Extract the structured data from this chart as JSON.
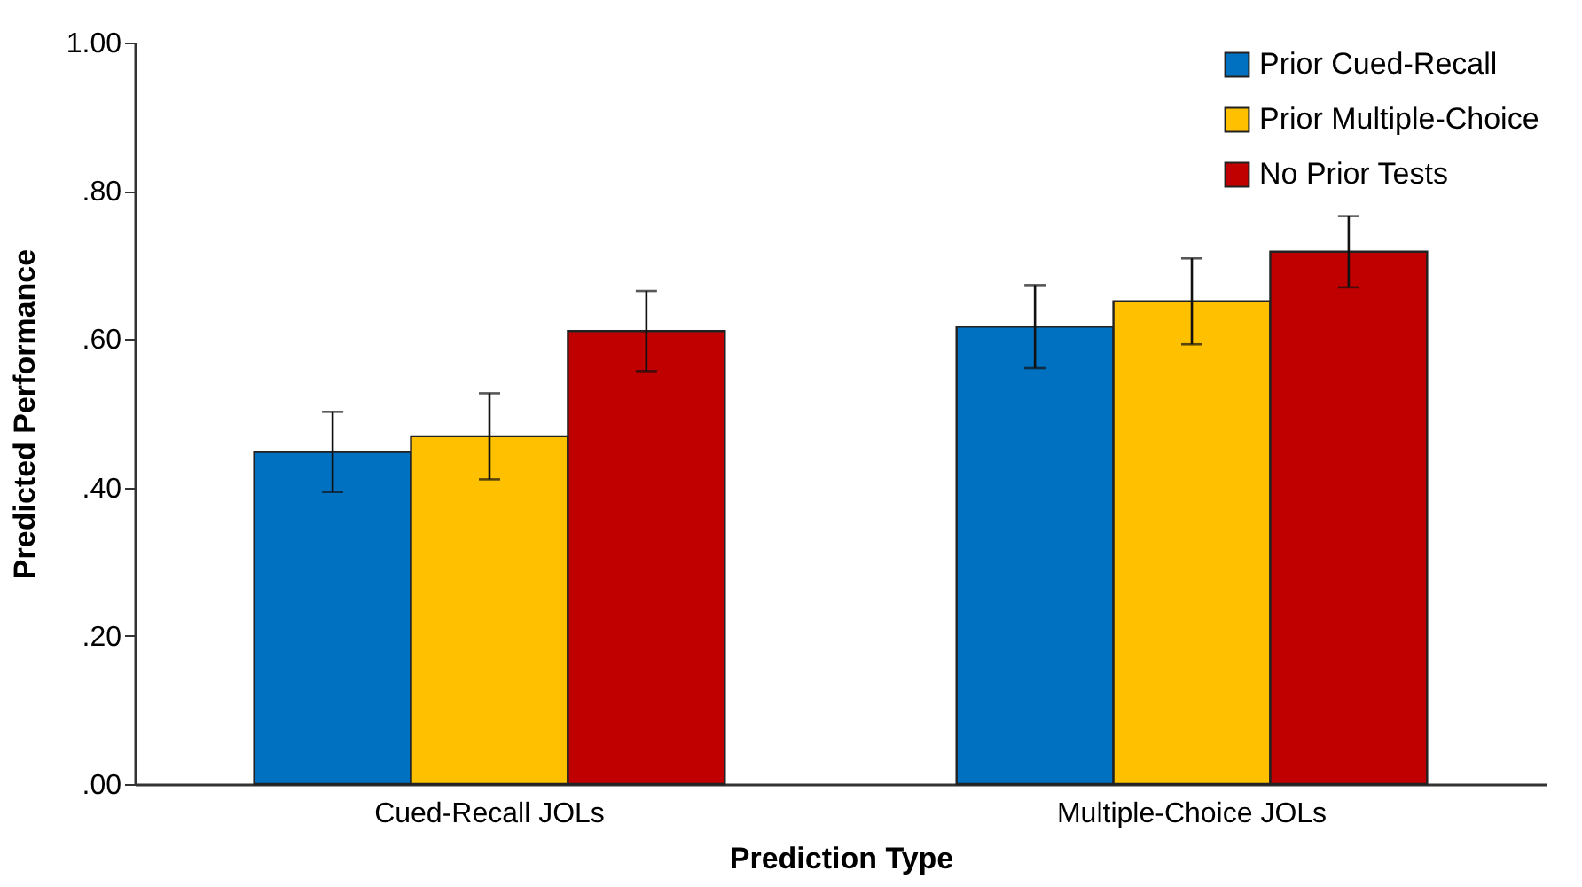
{
  "chart_data": {
    "type": "bar",
    "xlabel": "Prediction Type",
    "ylabel": "Predicted Performance",
    "categories": [
      "Cued-Recall JOLs",
      "Multiple-Choice JOLs"
    ],
    "series": [
      {
        "name": "Prior Cued-Recall",
        "color": "#0070c0",
        "values": [
          0.448,
          0.617
        ],
        "errors": [
          0.054,
          0.056
        ]
      },
      {
        "name": "Prior Multiple-Choice",
        "color": "#ffc000",
        "values": [
          0.469,
          0.651
        ],
        "errors": [
          0.058,
          0.058
        ]
      },
      {
        "name": "No Prior Tests",
        "color": "#c00000",
        "values": [
          0.611,
          0.718
        ],
        "errors": [
          0.054,
          0.048
        ]
      }
    ],
    "ylim": [
      0,
      1
    ],
    "yticks": [
      {
        "value": 0,
        "label": ".00"
      },
      {
        "value": 0.2,
        "label": ".20"
      },
      {
        "value": 0.4,
        "label": ".40"
      },
      {
        "value": 0.6,
        "label": ".60"
      },
      {
        "value": 0.8,
        "label": ".80"
      },
      {
        "value": 1,
        "label": "1.00"
      }
    ],
    "grid": false,
    "legend": "top right"
  }
}
